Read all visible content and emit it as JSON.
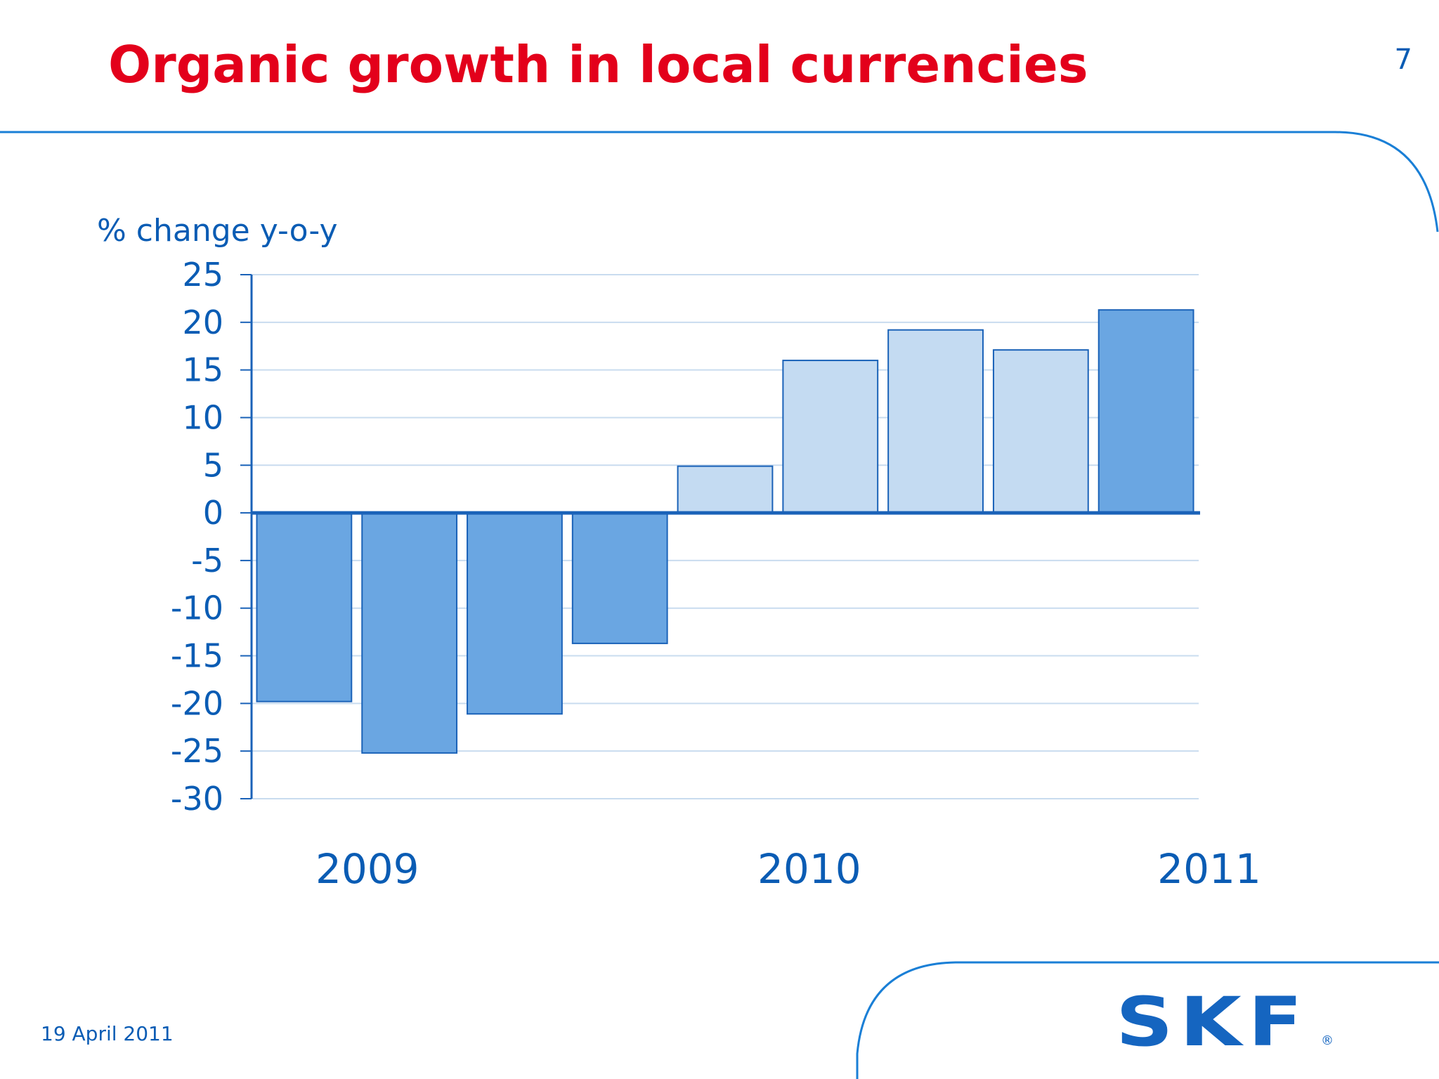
{
  "slide": {
    "title": "Organic growth in local currencies",
    "page_number": "7",
    "date": "19 April 2011",
    "logo_text": "SKF",
    "logo_mark": "®"
  },
  "colors": {
    "title": "#e3001b",
    "text": "#0a5cb4",
    "bar_dark": "#6aa6e2",
    "bar_light": "#c4dbf2",
    "bar_stroke": "#1a62b8",
    "grid": "#c9dcef",
    "frame": "#1a7fd6"
  },
  "chart_data": {
    "type": "bar",
    "ylabel": "% change y-o-y",
    "ylim": [
      -30,
      25
    ],
    "yticks": [
      25,
      20,
      15,
      10,
      5,
      0,
      -5,
      -10,
      -15,
      -20,
      -25,
      -30
    ],
    "grid": true,
    "year_labels": [
      {
        "label": "2009",
        "category_index": 0.6
      },
      {
        "label": "2010",
        "category_index": 4.8
      },
      {
        "label": "2011",
        "category_index": 8.6
      }
    ],
    "values": [
      -19.8,
      -25.2,
      -21.1,
      -13.7,
      4.9,
      16.0,
      19.2,
      17.1,
      21.3
    ],
    "shade": [
      "dark",
      "dark",
      "dark",
      "dark",
      "light",
      "light",
      "light",
      "light",
      "dark"
    ]
  }
}
